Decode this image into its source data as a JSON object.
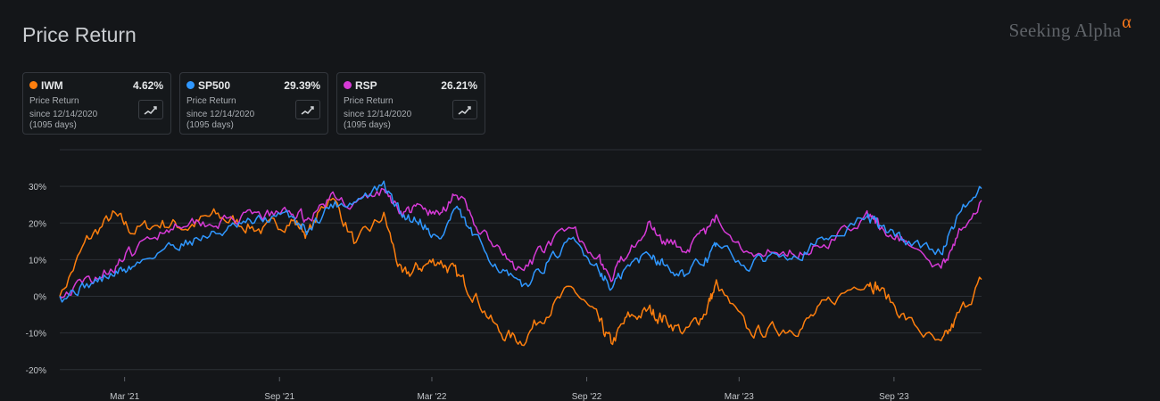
{
  "header": {
    "title": "Price Return",
    "logo_text": "Seeking Alpha",
    "logo_mark": "α"
  },
  "cards": [
    {
      "symbol": "IWM",
      "value": "4.62%",
      "label": "Price Return",
      "since": "since 12/14/2020",
      "days": "(1095 days)",
      "color": "#ff7f0e",
      "icon": "chart-line-icon"
    },
    {
      "symbol": "SP500",
      "value": "29.39%",
      "label": "Price Return",
      "since": "since 12/14/2020",
      "days": "(1095 days)",
      "color": "#2f97ff",
      "icon": "chart-line-icon"
    },
    {
      "symbol": "RSP",
      "value": "26.21%",
      "label": "Price Return",
      "since": "since 12/14/2020",
      "days": "(1095 days)",
      "color": "#d63ad6",
      "icon": "chart-line-icon"
    }
  ],
  "chart_data": {
    "type": "line",
    "title": "",
    "xlabel": "",
    "ylabel": "",
    "x_ticks": [
      "Mar '21",
      "Sep '21",
      "Mar '22",
      "Sep '22",
      "Mar '23",
      "Sep '23"
    ],
    "x_tick_dates": [
      "2021-03-01",
      "2021-09-01",
      "2022-03-01",
      "2022-09-01",
      "2023-03-01",
      "2023-09-01"
    ],
    "x_range": [
      "2020-12-14",
      "2023-12-14"
    ],
    "y_ticks": [
      "30%",
      "20%",
      "10%",
      "0%",
      "-10%",
      "-20%"
    ],
    "y_tick_values": [
      30,
      20,
      10,
      0,
      -10,
      -20
    ],
    "ylim": [
      -22,
      40
    ],
    "grid": true,
    "series": [
      {
        "name": "SP500",
        "color": "#2f97ff",
        "x": [
          "2020-12-14",
          "2021-01-15",
          "2021-02-15",
          "2021-03-10",
          "2021-04-15",
          "2021-05-15",
          "2021-06-15",
          "2021-07-15",
          "2021-08-15",
          "2021-09-15",
          "2021-10-05",
          "2021-11-01",
          "2021-12-01",
          "2022-01-03",
          "2022-01-25",
          "2022-02-15",
          "2022-03-10",
          "2022-03-29",
          "2022-04-20",
          "2022-05-20",
          "2022-06-16",
          "2022-07-15",
          "2022-08-16",
          "2022-09-15",
          "2022-09-30",
          "2022-10-20",
          "2022-11-15",
          "2022-12-01",
          "2022-12-28",
          "2023-01-20",
          "2023-02-02",
          "2023-03-13",
          "2023-04-15",
          "2023-05-15",
          "2023-06-15",
          "2023-07-31",
          "2023-08-15",
          "2023-09-15",
          "2023-10-27",
          "2023-11-15",
          "2023-12-14"
        ],
        "values": [
          0,
          3,
          6,
          8,
          13,
          15,
          17,
          19,
          21,
          22,
          18,
          25,
          26,
          30,
          22,
          21,
          15,
          24,
          16,
          8,
          2,
          9,
          15,
          8,
          2,
          8,
          12,
          9,
          6,
          10,
          14,
          8,
          12,
          12,
          16,
          22,
          19,
          15,
          12,
          22,
          29.4
        ]
      },
      {
        "name": "RSP",
        "color": "#d63ad6",
        "x": [
          "2020-12-14",
          "2021-01-15",
          "2021-02-15",
          "2021-03-10",
          "2021-04-15",
          "2021-05-15",
          "2021-06-15",
          "2021-07-15",
          "2021-08-15",
          "2021-09-15",
          "2021-10-05",
          "2021-11-01",
          "2021-12-01",
          "2022-01-03",
          "2022-01-25",
          "2022-02-15",
          "2022-03-10",
          "2022-03-29",
          "2022-04-20",
          "2022-05-20",
          "2022-06-16",
          "2022-07-15",
          "2022-08-16",
          "2022-09-15",
          "2022-09-30",
          "2022-10-20",
          "2022-11-15",
          "2022-12-01",
          "2022-12-28",
          "2023-01-20",
          "2023-02-02",
          "2023-03-13",
          "2023-04-15",
          "2023-05-15",
          "2023-06-15",
          "2023-07-31",
          "2023-08-15",
          "2023-09-15",
          "2023-10-27",
          "2023-11-15",
          "2023-12-14"
        ],
        "values": [
          0,
          4,
          8,
          12,
          18,
          21,
          20,
          21,
          22,
          23,
          21,
          27,
          25,
          29,
          23,
          24,
          22,
          29,
          20,
          12,
          6,
          14,
          18,
          11,
          4,
          13,
          20,
          16,
          13,
          17,
          21,
          12,
          13,
          12,
          15,
          22,
          19,
          15,
          7,
          17,
          26.2
        ]
      },
      {
        "name": "IWM",
        "color": "#ff7f0e",
        "x": [
          "2020-12-14",
          "2021-01-15",
          "2021-02-15",
          "2021-03-10",
          "2021-04-15",
          "2021-05-15",
          "2021-06-15",
          "2021-07-15",
          "2021-08-15",
          "2021-09-15",
          "2021-10-05",
          "2021-11-01",
          "2021-12-01",
          "2022-01-03",
          "2022-01-25",
          "2022-02-15",
          "2022-03-10",
          "2022-03-29",
          "2022-04-20",
          "2022-05-20",
          "2022-06-16",
          "2022-07-15",
          "2022-08-16",
          "2022-09-15",
          "2022-09-30",
          "2022-10-20",
          "2022-11-15",
          "2022-12-01",
          "2022-12-28",
          "2023-01-20",
          "2023-02-02",
          "2023-03-13",
          "2023-04-15",
          "2023-05-15",
          "2023-06-15",
          "2023-07-31",
          "2023-08-15",
          "2023-09-15",
          "2023-10-27",
          "2023-11-15",
          "2023-12-14"
        ],
        "values": [
          0,
          15,
          22,
          18,
          20,
          19,
          22,
          20,
          18,
          21,
          17,
          28,
          14,
          22,
          5,
          8,
          10,
          6,
          1,
          -10,
          -12,
          -4,
          2,
          -7,
          -13,
          -6,
          -4,
          -6,
          -10,
          -4,
          3,
          -10,
          -9,
          -8,
          -2,
          5,
          2,
          -6,
          -14,
          -6,
          4.6
        ]
      }
    ]
  }
}
